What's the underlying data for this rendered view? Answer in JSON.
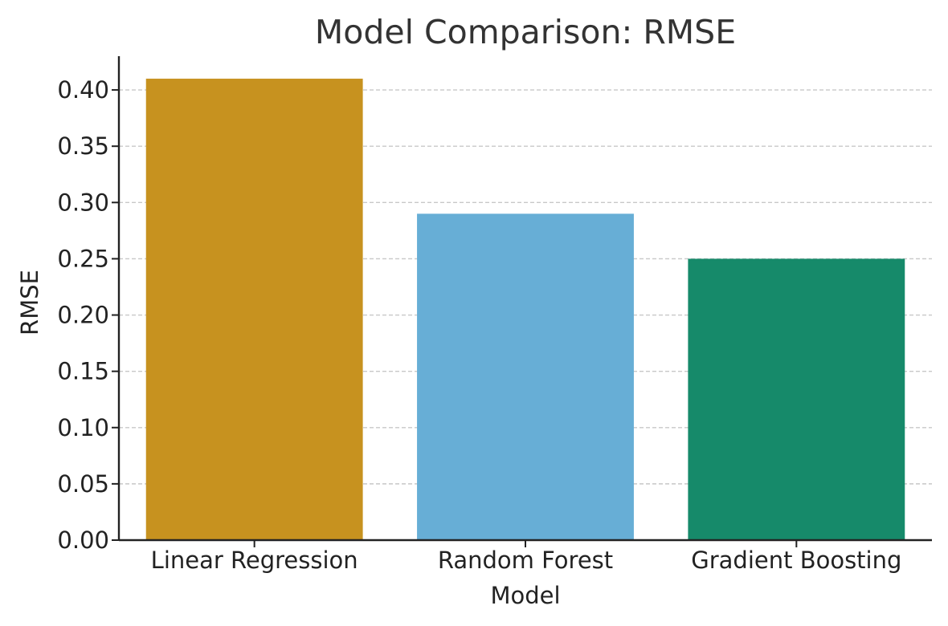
{
  "chart_data": {
    "type": "bar",
    "title": "Model Comparison: RMSE",
    "xlabel": "Model",
    "ylabel": "RMSE",
    "categories": [
      "Linear Regression",
      "Random Forest",
      "Gradient Boosting"
    ],
    "values": [
      0.41,
      0.29,
      0.25
    ],
    "colors": [
      "#C7921F",
      "#67AED6",
      "#168A6A"
    ],
    "ylim": [
      0,
      0.43
    ],
    "yticks": [
      0.0,
      0.05,
      0.1,
      0.15,
      0.2,
      0.25,
      0.3,
      0.35,
      0.4
    ],
    "ytick_labels": [
      "0.00",
      "0.05",
      "0.10",
      "0.15",
      "0.20",
      "0.25",
      "0.30",
      "0.35",
      "0.40"
    ],
    "grid": "y-dashed",
    "legend": "none"
  }
}
